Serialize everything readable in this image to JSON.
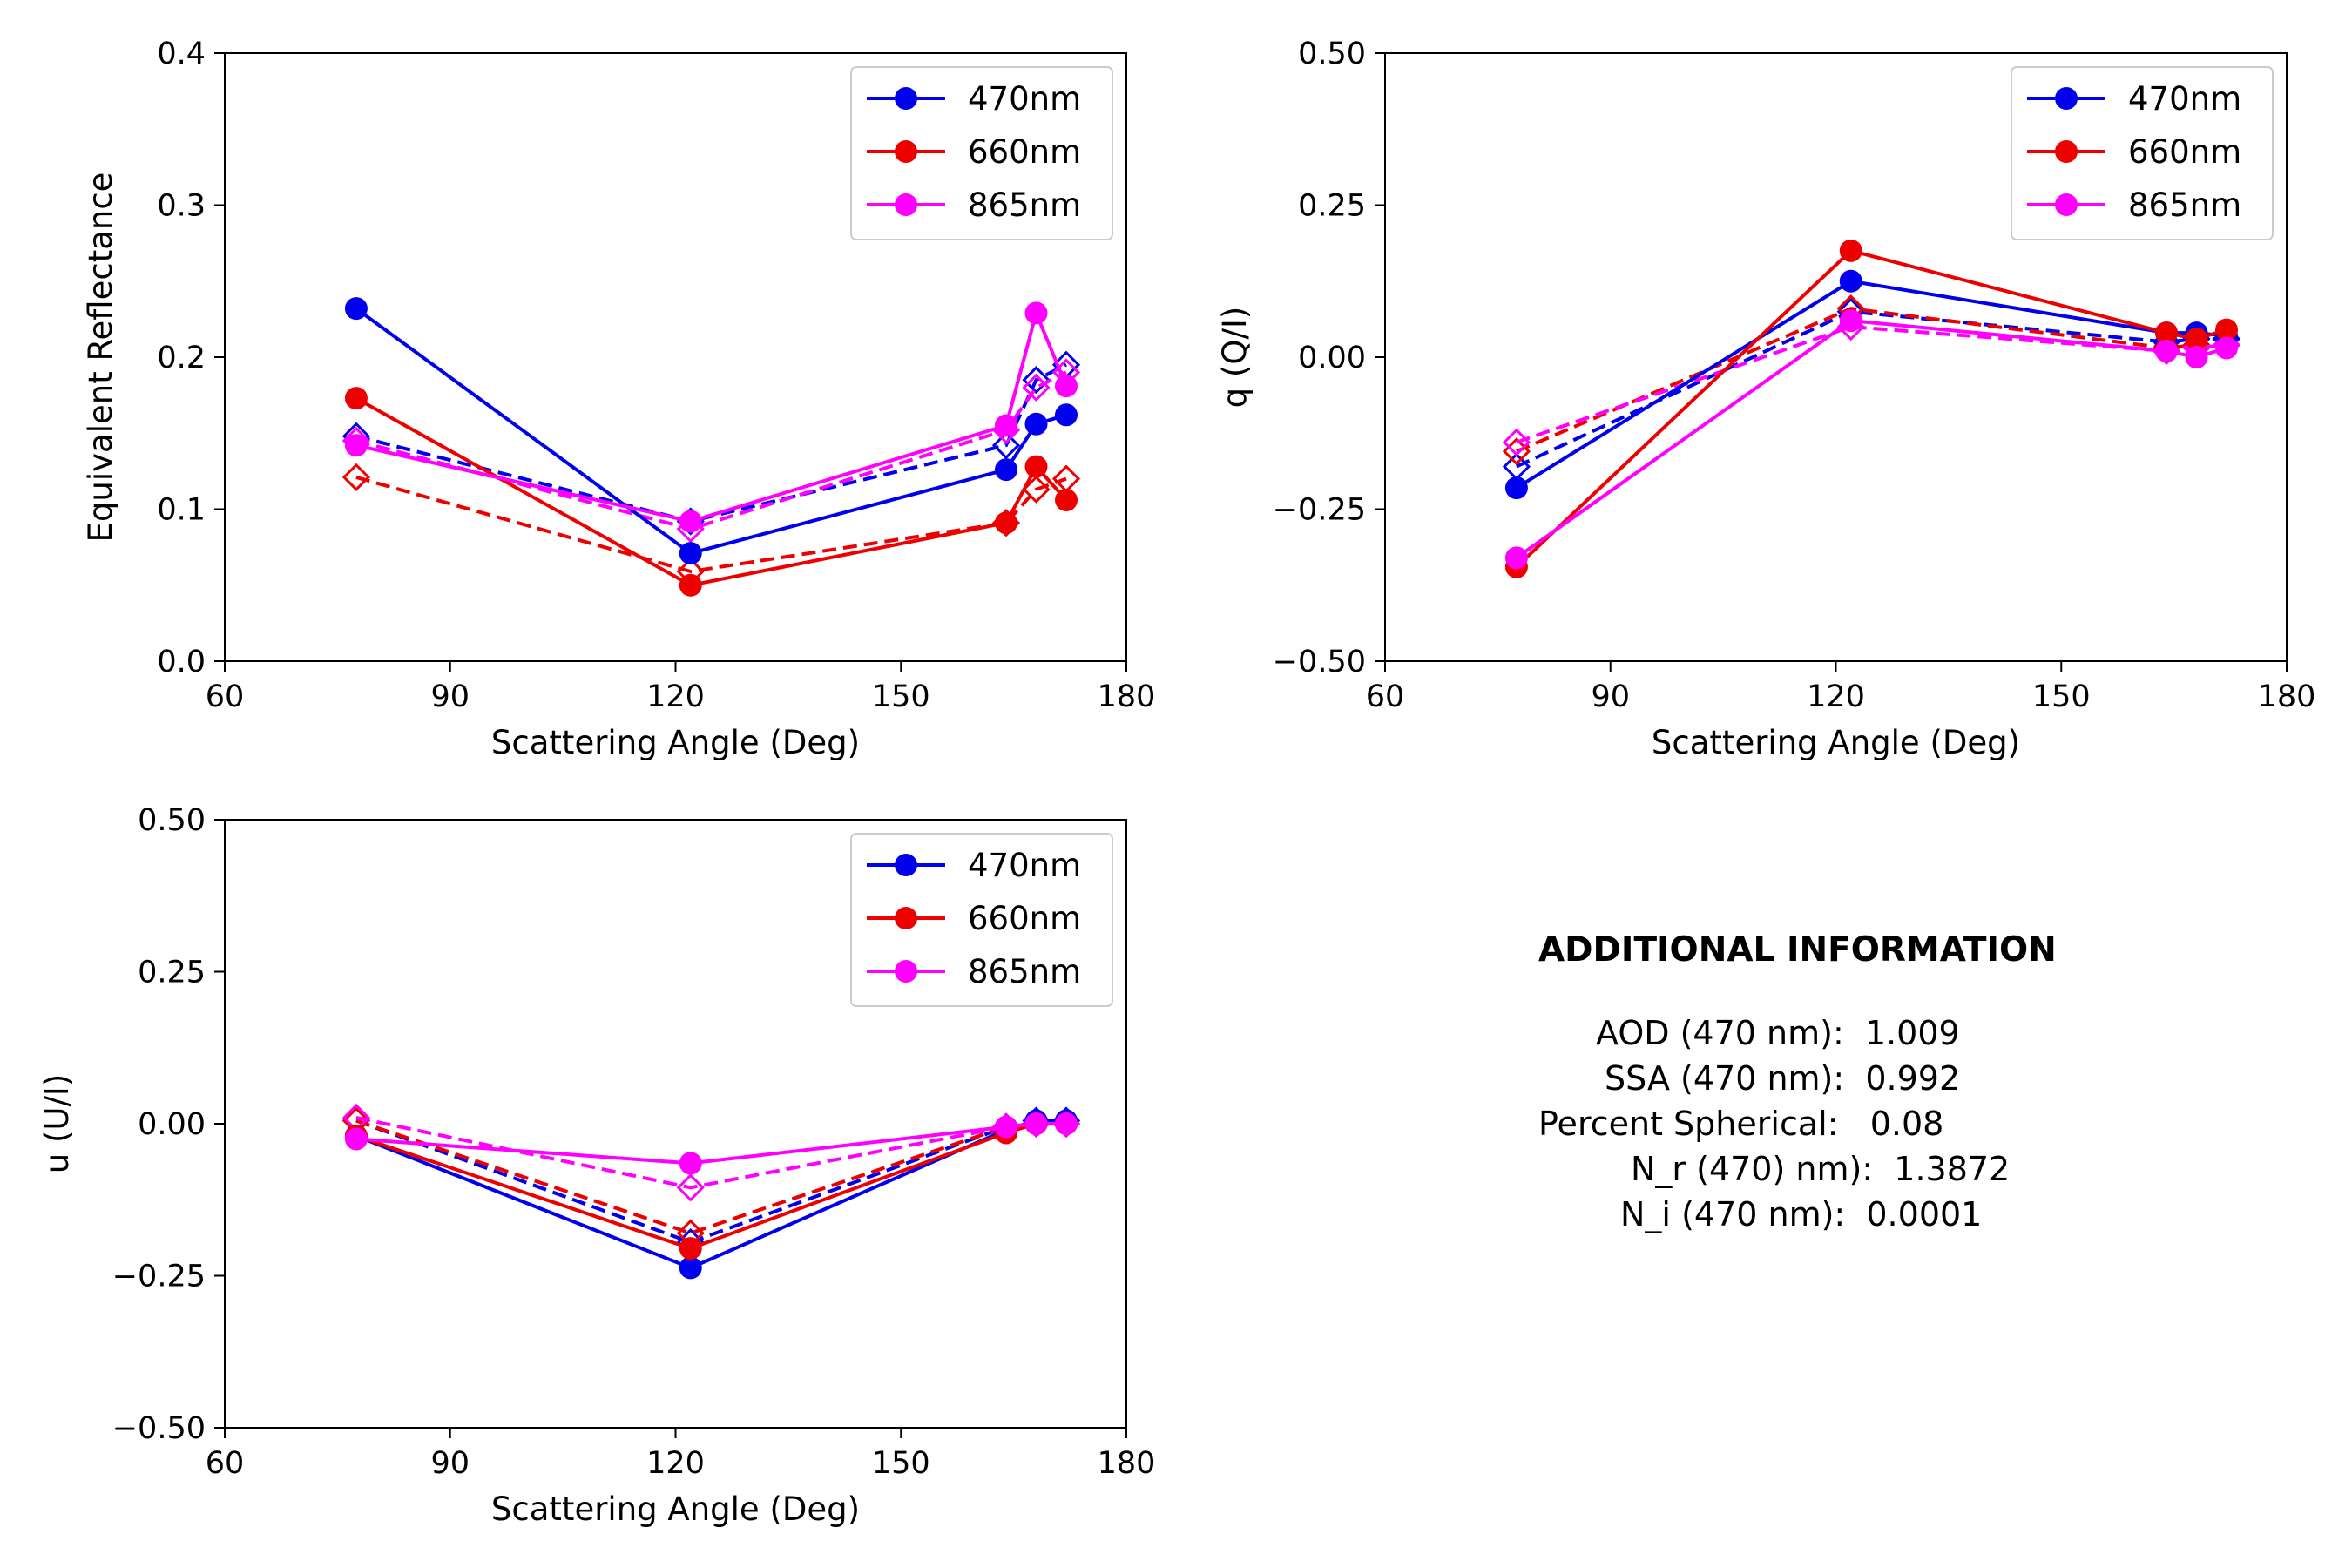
{
  "colors": {
    "470nm": "#0000ee",
    "660nm": "#ee0000",
    "865nm": "#ff00ff"
  },
  "chart_data": [
    {
      "type": "line",
      "xlabel": "Scattering Angle (Deg)",
      "ylabel": "Equivalent Reflectance",
      "xlim": [
        60,
        180
      ],
      "ylim": [
        0.0,
        0.4
      ],
      "xticks": [
        "60",
        "90",
        "120",
        "150",
        "180"
      ],
      "yticks": [
        "0.0",
        "0.1",
        "0.2",
        "0.3",
        "0.4"
      ],
      "legend": {
        "position": "top-right",
        "entries": [
          "470nm",
          "660nm",
          "865nm"
        ]
      },
      "series": [
        {
          "name": "470nm",
          "style": "measured",
          "x": [
            77.5,
            122,
            164,
            168,
            172
          ],
          "y": [
            0.232,
            0.071,
            0.126,
            0.156,
            0.162
          ]
        },
        {
          "name": "470nm",
          "style": "model",
          "x": [
            77.5,
            122,
            164,
            168,
            172
          ],
          "y": [
            0.148,
            0.092,
            0.142,
            0.185,
            0.195
          ]
        },
        {
          "name": "660nm",
          "style": "measured",
          "x": [
            77.5,
            122,
            164,
            168,
            172
          ],
          "y": [
            0.173,
            0.05,
            0.091,
            0.128,
            0.106
          ]
        },
        {
          "name": "660nm",
          "style": "model",
          "x": [
            77.5,
            122,
            164,
            168,
            172
          ],
          "y": [
            0.121,
            0.059,
            0.091,
            0.113,
            0.12
          ]
        },
        {
          "name": "865nm",
          "style": "measured",
          "x": [
            77.5,
            122,
            164,
            168,
            172
          ],
          "y": [
            0.142,
            0.092,
            0.155,
            0.229,
            0.181
          ]
        },
        {
          "name": "865nm",
          "style": "model",
          "x": [
            77.5,
            122,
            164,
            168,
            172
          ],
          "y": [
            0.145,
            0.087,
            0.152,
            0.18,
            0.19
          ]
        }
      ]
    },
    {
      "type": "line",
      "xlabel": "Scattering Angle (Deg)",
      "ylabel": "q (Q/I)",
      "xlim": [
        60,
        180
      ],
      "ylim": [
        -0.5,
        0.5
      ],
      "xticks": [
        "60",
        "90",
        "120",
        "150",
        "180"
      ],
      "yticks": [
        "−0.50",
        "−0.25",
        "0.00",
        "0.25",
        "0.50"
      ],
      "legend": {
        "position": "top-right",
        "entries": [
          "470nm",
          "660nm",
          "865nm"
        ]
      },
      "series": [
        {
          "name": "470nm",
          "style": "measured",
          "x": [
            77.5,
            122,
            164,
            168,
            172
          ],
          "y": [
            -0.215,
            0.125,
            0.04,
            0.04,
            0.035
          ]
        },
        {
          "name": "470nm",
          "style": "model",
          "x": [
            77.5,
            122,
            164,
            168,
            172
          ],
          "y": [
            -0.18,
            0.075,
            0.025,
            0.03,
            0.03
          ]
        },
        {
          "name": "660nm",
          "style": "measured",
          "x": [
            77.5,
            122,
            164,
            168,
            172
          ],
          "y": [
            -0.345,
            0.175,
            0.04,
            0.03,
            0.045
          ]
        },
        {
          "name": "660nm",
          "style": "model",
          "x": [
            77.5,
            122,
            164,
            168,
            172
          ],
          "y": [
            -0.155,
            0.08,
            0.015,
            0.02,
            0.02
          ]
        },
        {
          "name": "865nm",
          "style": "measured",
          "x": [
            77.5,
            122,
            164,
            168,
            172
          ],
          "y": [
            -0.33,
            0.06,
            0.01,
            0.0,
            0.015
          ]
        },
        {
          "name": "865nm",
          "style": "model",
          "x": [
            77.5,
            122,
            164,
            168,
            172
          ],
          "y": [
            -0.14,
            0.05,
            0.01,
            0.015,
            0.02
          ]
        }
      ]
    },
    {
      "type": "line",
      "xlabel": "Scattering Angle (Deg)",
      "ylabel": "u (U/I)",
      "xlim": [
        60,
        180
      ],
      "ylim": [
        -0.5,
        0.5
      ],
      "xticks": [
        "60",
        "90",
        "120",
        "150",
        "180"
      ],
      "yticks": [
        "−0.50",
        "−0.25",
        "0.00",
        "0.25",
        "0.50"
      ],
      "legend": {
        "position": "top-right",
        "entries": [
          "470nm",
          "660nm",
          "865nm"
        ]
      },
      "series": [
        {
          "name": "470nm",
          "style": "measured",
          "x": [
            77.5,
            122,
            164,
            168,
            172
          ],
          "y": [
            -0.02,
            -0.237,
            -0.01,
            0.005,
            0.005
          ]
        },
        {
          "name": "470nm",
          "style": "model",
          "x": [
            77.5,
            122,
            164,
            168,
            172
          ],
          "y": [
            0.005,
            -0.195,
            -0.005,
            0.005,
            0.005
          ]
        },
        {
          "name": "660nm",
          "style": "measured",
          "x": [
            77.5,
            122,
            164,
            168,
            172
          ],
          "y": [
            -0.02,
            -0.205,
            -0.015,
            0.0,
            0.0
          ]
        },
        {
          "name": "660nm",
          "style": "model",
          "x": [
            77.5,
            122,
            164,
            168,
            172
          ],
          "y": [
            0.005,
            -0.18,
            -0.005,
            0.0,
            0.0
          ]
        },
        {
          "name": "865nm",
          "style": "measured",
          "x": [
            77.5,
            122,
            164,
            168,
            172
          ],
          "y": [
            -0.025,
            -0.065,
            -0.005,
            0.0,
            0.0
          ]
        },
        {
          "name": "865nm",
          "style": "model",
          "x": [
            77.5,
            122,
            164,
            168,
            172
          ],
          "y": [
            0.01,
            -0.105,
            -0.005,
            0.0,
            0.0
          ]
        }
      ]
    }
  ],
  "additional_info": {
    "title": "ADDITIONAL INFORMATION",
    "lines": [
      "AOD (470 nm):  1.009",
      "SSA (470 nm):  0.992",
      "Percent Spherical:   0.08",
      "N_r (470) nm):  1.3872",
      "N_i (470 nm):  0.0001"
    ]
  }
}
